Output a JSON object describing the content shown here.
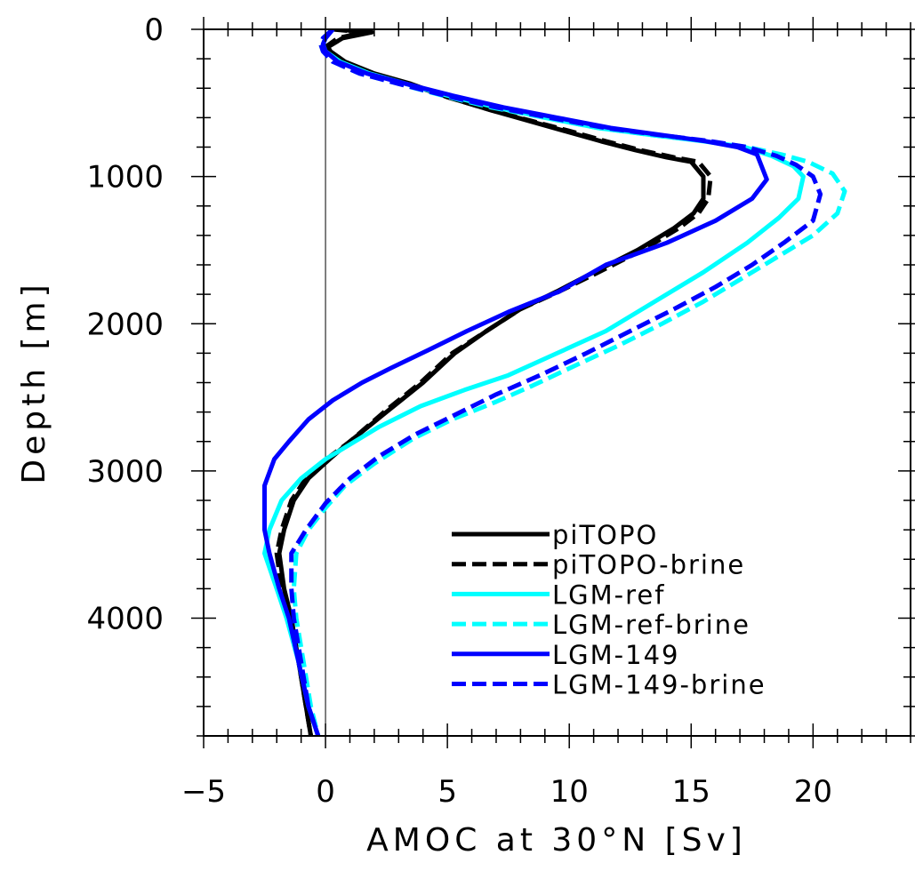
{
  "chart_data": {
    "type": "line",
    "xlabel": "AMOC at 30°N [Sv]",
    "ylabel": "Depth [m]",
    "xlim": [
      -5,
      24
    ],
    "ylim": [
      4800,
      0
    ],
    "xticks": [
      -5,
      0,
      5,
      10,
      15,
      20
    ],
    "yticks": [
      0,
      1000,
      2000,
      3000,
      4000
    ],
    "zero_line": true,
    "legend_position": "lower-right",
    "series": [
      {
        "name": "piTOPO",
        "color": "#000000",
        "style": "solid",
        "points": [
          [
            0.4,
            0
          ],
          [
            1.9,
            20
          ],
          [
            0.7,
            60
          ],
          [
            0.1,
            120
          ],
          [
            0.2,
            150
          ],
          [
            0.8,
            220
          ],
          [
            2.0,
            300
          ],
          [
            3.5,
            370
          ],
          [
            5.0,
            460
          ],
          [
            6.8,
            550
          ],
          [
            8.3,
            620
          ],
          [
            9.8,
            690
          ],
          [
            11.3,
            760
          ],
          [
            12.7,
            820
          ],
          [
            14.0,
            870
          ],
          [
            15.0,
            900
          ],
          [
            15.5,
            1000
          ],
          [
            15.5,
            1150
          ],
          [
            15.1,
            1250
          ],
          [
            14.3,
            1350
          ],
          [
            12.8,
            1500
          ],
          [
            11.0,
            1650
          ],
          [
            9.5,
            1780
          ],
          [
            8.0,
            1900
          ],
          [
            6.6,
            2050
          ],
          [
            5.3,
            2200
          ],
          [
            4.0,
            2400
          ],
          [
            2.5,
            2600
          ],
          [
            1.0,
            2800
          ],
          [
            0.3,
            2900
          ],
          [
            -0.7,
            3050
          ],
          [
            -1.3,
            3200
          ],
          [
            -1.7,
            3400
          ],
          [
            -1.9,
            3560
          ],
          [
            -1.7,
            3800
          ],
          [
            -1.4,
            4000
          ],
          [
            -1.1,
            4300
          ],
          [
            -0.8,
            4600
          ],
          [
            -0.6,
            4800
          ]
        ]
      },
      {
        "name": "piTOPO-brine",
        "color": "#000000",
        "style": "dashed",
        "points": [
          [
            0.3,
            0
          ],
          [
            1.6,
            20
          ],
          [
            0.5,
            60
          ],
          [
            0.0,
            120
          ],
          [
            0.1,
            150
          ],
          [
            0.7,
            220
          ],
          [
            1.9,
            300
          ],
          [
            3.4,
            370
          ],
          [
            5.0,
            460
          ],
          [
            6.8,
            550
          ],
          [
            8.4,
            620
          ],
          [
            10.0,
            690
          ],
          [
            11.5,
            760
          ],
          [
            12.9,
            820
          ],
          [
            14.3,
            870
          ],
          [
            15.3,
            900
          ],
          [
            15.8,
            1000
          ],
          [
            15.7,
            1150
          ],
          [
            15.3,
            1250
          ],
          [
            14.5,
            1350
          ],
          [
            13.0,
            1500
          ],
          [
            11.2,
            1650
          ],
          [
            9.6,
            1780
          ],
          [
            8.0,
            1900
          ],
          [
            6.6,
            2050
          ],
          [
            5.2,
            2200
          ],
          [
            3.9,
            2400
          ],
          [
            2.4,
            2600
          ],
          [
            1.0,
            2800
          ],
          [
            0.2,
            2900
          ],
          [
            -0.8,
            3050
          ],
          [
            -1.4,
            3200
          ],
          [
            -1.8,
            3400
          ],
          [
            -2.0,
            3560
          ],
          [
            -1.8,
            3800
          ],
          [
            -1.4,
            4000
          ],
          [
            -1.1,
            4300
          ],
          [
            -0.8,
            4600
          ],
          [
            -0.6,
            4800
          ]
        ]
      },
      {
        "name": "LGM-ref",
        "color": "#00ffff",
        "style": "solid",
        "points": [
          [
            0.3,
            0
          ],
          [
            0.0,
            60
          ],
          [
            -0.1,
            100
          ],
          [
            0.0,
            150
          ],
          [
            0.6,
            220
          ],
          [
            1.8,
            300
          ],
          [
            3.3,
            370
          ],
          [
            5.0,
            450
          ],
          [
            7.0,
            530
          ],
          [
            9.0,
            600
          ],
          [
            11.2,
            670
          ],
          [
            13.5,
            720
          ],
          [
            15.5,
            760
          ],
          [
            17.2,
            800
          ],
          [
            18.3,
            860
          ],
          [
            19.2,
            930
          ],
          [
            19.6,
            1000
          ],
          [
            19.4,
            1150
          ],
          [
            18.6,
            1280
          ],
          [
            17.3,
            1450
          ],
          [
            15.5,
            1650
          ],
          [
            13.5,
            1850
          ],
          [
            11.5,
            2050
          ],
          [
            9.5,
            2200
          ],
          [
            7.5,
            2350
          ],
          [
            5.7,
            2450
          ],
          [
            3.9,
            2560
          ],
          [
            2.2,
            2700
          ],
          [
            1.0,
            2820
          ],
          [
            0.0,
            2920
          ],
          [
            -1.0,
            3050
          ],
          [
            -1.8,
            3200
          ],
          [
            -2.3,
            3400
          ],
          [
            -2.5,
            3560
          ],
          [
            -2.0,
            3800
          ],
          [
            -1.6,
            4000
          ],
          [
            -1.1,
            4300
          ],
          [
            -0.7,
            4600
          ],
          [
            -0.3,
            4800
          ]
        ]
      },
      {
        "name": "LGM-ref-brine",
        "color": "#00ffff",
        "style": "dashed",
        "points": [
          [
            0.3,
            0
          ],
          [
            -0.1,
            60
          ],
          [
            -0.2,
            100
          ],
          [
            -0.1,
            150
          ],
          [
            0.3,
            220
          ],
          [
            1.4,
            300
          ],
          [
            3.0,
            370
          ],
          [
            4.8,
            450
          ],
          [
            6.8,
            530
          ],
          [
            9.0,
            600
          ],
          [
            11.2,
            670
          ],
          [
            13.5,
            720
          ],
          [
            15.6,
            760
          ],
          [
            17.3,
            800
          ],
          [
            18.7,
            850
          ],
          [
            19.8,
            900
          ],
          [
            20.8,
            980
          ],
          [
            21.3,
            1100
          ],
          [
            21.0,
            1250
          ],
          [
            20.0,
            1400
          ],
          [
            18.5,
            1550
          ],
          [
            17.0,
            1700
          ],
          [
            15.5,
            1850
          ],
          [
            13.8,
            2000
          ],
          [
            12.0,
            2150
          ],
          [
            10.3,
            2280
          ],
          [
            8.5,
            2420
          ],
          [
            7.0,
            2530
          ],
          [
            5.2,
            2650
          ],
          [
            3.6,
            2780
          ],
          [
            2.0,
            2950
          ],
          [
            0.8,
            3100
          ],
          [
            0.0,
            3250
          ],
          [
            -0.7,
            3400
          ],
          [
            -1.2,
            3560
          ],
          [
            -1.3,
            3800
          ],
          [
            -1.2,
            4000
          ],
          [
            -0.9,
            4300
          ],
          [
            -0.6,
            4600
          ],
          [
            -0.3,
            4800
          ]
        ]
      },
      {
        "name": "LGM-149",
        "color": "#0000ff",
        "style": "solid",
        "points": [
          [
            0.3,
            0
          ],
          [
            0.0,
            60
          ],
          [
            -0.1,
            100
          ],
          [
            0.0,
            150
          ],
          [
            0.5,
            220
          ],
          [
            1.7,
            300
          ],
          [
            3.3,
            370
          ],
          [
            5.2,
            450
          ],
          [
            7.3,
            530
          ],
          [
            9.5,
            600
          ],
          [
            11.7,
            670
          ],
          [
            13.9,
            720
          ],
          [
            15.6,
            760
          ],
          [
            16.9,
            800
          ],
          [
            17.7,
            850
          ],
          [
            18.1,
            1020
          ],
          [
            17.5,
            1150
          ],
          [
            16.0,
            1300
          ],
          [
            14.0,
            1450
          ],
          [
            11.5,
            1600
          ],
          [
            9.6,
            1780
          ],
          [
            7.5,
            1920
          ],
          [
            5.8,
            2050
          ],
          [
            4.2,
            2180
          ],
          [
            2.7,
            2300
          ],
          [
            1.5,
            2400
          ],
          [
            0.3,
            2520
          ],
          [
            -0.7,
            2650
          ],
          [
            -1.5,
            2800
          ],
          [
            -2.1,
            2920
          ],
          [
            -2.5,
            3100
          ],
          [
            -2.5,
            3220
          ],
          [
            -2.5,
            3400
          ],
          [
            -2.3,
            3560
          ],
          [
            -1.9,
            3800
          ],
          [
            -1.5,
            4000
          ],
          [
            -1.1,
            4300
          ],
          [
            -0.7,
            4600
          ],
          [
            -0.3,
            4800
          ]
        ]
      },
      {
        "name": "LGM-149-brine",
        "color": "#0000ff",
        "style": "dashed",
        "points": [
          [
            0.3,
            0
          ],
          [
            -0.1,
            60
          ],
          [
            -0.2,
            100
          ],
          [
            -0.1,
            150
          ],
          [
            0.3,
            220
          ],
          [
            1.4,
            300
          ],
          [
            3.0,
            370
          ],
          [
            4.9,
            450
          ],
          [
            7.0,
            530
          ],
          [
            9.2,
            600
          ],
          [
            11.5,
            670
          ],
          [
            13.8,
            720
          ],
          [
            15.8,
            760
          ],
          [
            17.3,
            800
          ],
          [
            18.5,
            860
          ],
          [
            19.3,
            920
          ],
          [
            20.0,
            1000
          ],
          [
            20.3,
            1120
          ],
          [
            20.0,
            1300
          ],
          [
            18.8,
            1450
          ],
          [
            17.5,
            1600
          ],
          [
            16.0,
            1750
          ],
          [
            14.3,
            1900
          ],
          [
            12.5,
            2050
          ],
          [
            10.7,
            2200
          ],
          [
            8.8,
            2350
          ],
          [
            7.0,
            2480
          ],
          [
            5.3,
            2620
          ],
          [
            3.7,
            2750
          ],
          [
            2.2,
            2900
          ],
          [
            1.0,
            3050
          ],
          [
            0.0,
            3220
          ],
          [
            -0.8,
            3400
          ],
          [
            -1.4,
            3560
          ],
          [
            -1.4,
            3800
          ],
          [
            -1.3,
            4000
          ],
          [
            -1.0,
            4300
          ],
          [
            -0.7,
            4600
          ],
          [
            -0.3,
            4800
          ]
        ]
      }
    ]
  }
}
